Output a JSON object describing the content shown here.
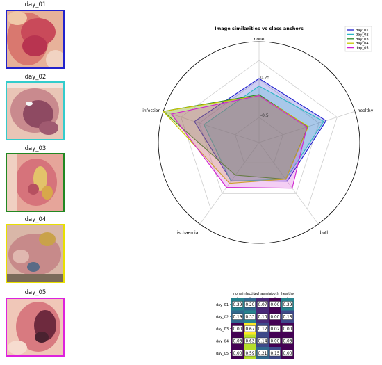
{
  "thumbnails": [
    {
      "label": "day_01",
      "border": "#2222cc"
    },
    {
      "label": "day_02",
      "border": "#33cccc"
    },
    {
      "label": "day_03",
      "border": "#228822"
    },
    {
      "label": "day_04",
      "border": "#e8e000"
    },
    {
      "label": "day_05",
      "border": "#dd22dd"
    }
  ],
  "chart_data": [
    {
      "type": "radar",
      "title": "Image similarities vs class anchors",
      "axes": [
        "none",
        "healthy",
        "both",
        "ischaemia",
        "infection"
      ],
      "rlim": [
        -1.0,
        1.0
      ],
      "radial_ticks": [
        -0.5,
        0.25
      ],
      "radial_tick_labels": [
        "-0.5",
        "0.25"
      ],
      "grid": true,
      "legend_position": "top-right",
      "series": [
        {
          "name": "day_01",
          "color": "#1f1fcf",
          "values": [
            0.27,
            0.4,
            -0.05,
            -0.06,
            0.35
          ]
        },
        {
          "name": "day_02",
          "color": "#2ab7c4",
          "values": [
            0.12,
            0.35,
            -0.1,
            -0.05,
            0.15
          ]
        },
        {
          "name": "day_03",
          "color": "#2a8a2a",
          "values": [
            -0.05,
            0.02,
            -0.1,
            -0.2,
            1.0
          ]
        },
        {
          "name": "day_04",
          "color": "#c9c400",
          "values": [
            -0.07,
            0.03,
            -0.1,
            0.0,
            1.0
          ]
        },
        {
          "name": "day_05",
          "color": "#cf1fcf",
          "values": [
            -0.07,
            0.0,
            0.12,
            0.1,
            0.83
          ]
        }
      ]
    },
    {
      "type": "heatmap",
      "columns": [
        "none",
        "infection",
        "ischaemia",
        "both",
        "healthy"
      ],
      "rows": [
        "day_01",
        "day_02",
        "day_03",
        "day_04",
        "day_05"
      ],
      "values": [
        [
          0.29,
          0.2,
          0.07,
          0.0,
          0.29
        ],
        [
          0.19,
          0.33,
          0.1,
          0.0,
          0.18
        ],
        [
          0.0,
          0.67,
          0.12,
          0.02,
          0.0
        ],
        [
          0.03,
          0.63,
          0.14,
          0.0,
          0.03
        ],
        [
          0.0,
          0.59,
          0.21,
          0.15,
          0.0
        ]
      ],
      "value_labels": [
        [
          "0.29",
          "0.20",
          "0.07",
          "0.00",
          "0.29"
        ],
        [
          "0.19",
          "0.33",
          "0.10",
          "0.00",
          "0.18"
        ],
        [
          "0.00",
          "0.67",
          "0.12",
          "0.02",
          "0.00"
        ],
        [
          "0.03",
          "0.63",
          "0.14",
          "0.00",
          "0.03"
        ],
        [
          "0.00",
          "0.59",
          "0.21",
          "0.15",
          "0.00"
        ]
      ],
      "colormap": "viridis"
    }
  ]
}
